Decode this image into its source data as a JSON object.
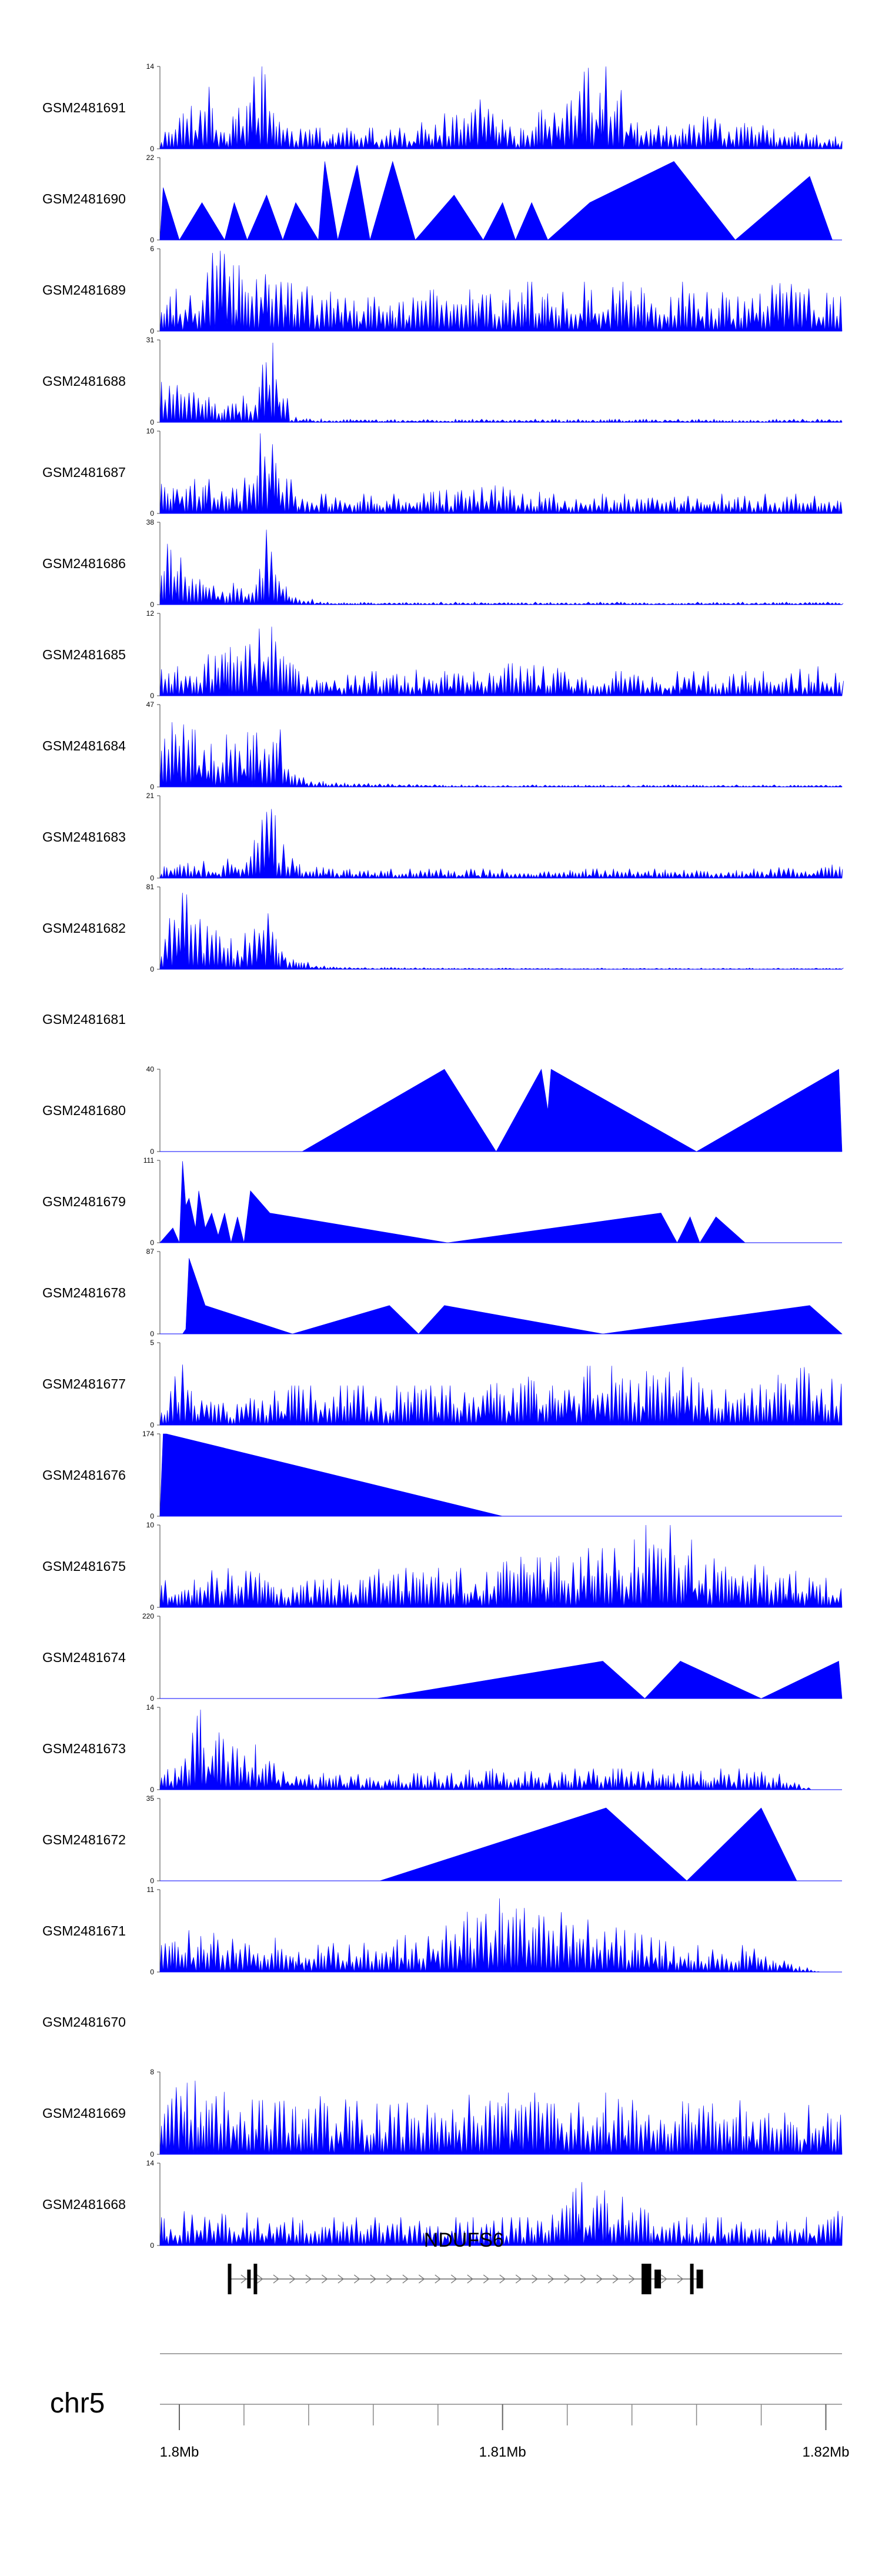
{
  "chart_data": {
    "type": "area",
    "title": "",
    "fill_color": "#0000FF",
    "genome": {
      "chromosome_label": "chr5",
      "gene_name": "NDUFS6",
      "tick_labels": [
        "1.8Mb",
        "1.81Mb",
        "1.82Mb"
      ],
      "tick_values": [
        1.8,
        1.81,
        1.82
      ],
      "minor_tick_step": 0.002,
      "xlim": [
        1.7994,
        1.8205
      ],
      "gene": {
        "start": 1.8015,
        "end": 1.8161,
        "strand": "+",
        "exons": [
          {
            "start": 1.8015,
            "end": 1.8016,
            "height": "full"
          },
          {
            "start": 1.8021,
            "end": 1.8022,
            "height": "half"
          },
          {
            "start": 1.8023,
            "end": 1.8024,
            "height": "full"
          },
          {
            "start": 1.8143,
            "end": 1.8146,
            "height": "full"
          },
          {
            "start": 1.8147,
            "end": 1.8149,
            "height": "half"
          },
          {
            "start": 1.8158,
            "end": 1.8159,
            "height": "full"
          },
          {
            "start": 1.816,
            "end": 1.8162,
            "height": "half"
          }
        ]
      }
    },
    "tracks": [
      {
        "name": "GSM2481691",
        "ymax": 14,
        "style": "dense",
        "seed": 11,
        "x": [
          1.7994,
          1.8003,
          1.8009,
          1.8014,
          1.8018,
          1.802,
          1.8022,
          1.8024,
          1.8025,
          1.8028,
          1.8032,
          1.8038,
          1.8048,
          1.807,
          1.8098,
          1.8103,
          1.8132,
          1.8142,
          1.8158,
          1.8168,
          1.8205
        ],
        "y": [
          2,
          6,
          9,
          3,
          7,
          8,
          10,
          11,
          14,
          8,
          4,
          3,
          3,
          3,
          8,
          2,
          14,
          3,
          5,
          4,
          2
        ]
      },
      {
        "name": "GSM2481690",
        "ymax": 22,
        "style": "sparse",
        "seed": 12,
        "x": [
          1.7994,
          1.7995,
          1.8,
          1.8007,
          1.8014,
          1.8017,
          1.8021,
          1.8027,
          1.8032,
          1.8036,
          1.8043,
          1.8045,
          1.8049,
          1.8055,
          1.8059,
          1.8066,
          1.8073,
          1.8085,
          1.8094,
          1.81,
          1.8104,
          1.8109,
          1.8114,
          1.8127,
          1.8153,
          1.8172,
          1.8195,
          1.8202
        ],
        "y": [
          0,
          14,
          0,
          10,
          0,
          10,
          0,
          12,
          0,
          10,
          0,
          21,
          0,
          20,
          0,
          21,
          0,
          12,
          0,
          10,
          0,
          10,
          0,
          10,
          21,
          0,
          17,
          0
        ]
      },
      {
        "name": "GSM2481689",
        "ymax": 6,
        "style": "dense",
        "seed": 13,
        "x": [
          1.7994,
          1.8002,
          1.8008,
          1.8012,
          1.8016,
          1.8022,
          1.8027,
          1.8032,
          1.8056,
          1.8098,
          1.8114,
          1.8136,
          1.8156,
          1.8174,
          1.8188,
          1.8205
        ],
        "y": [
          2,
          3,
          4,
          6,
          4,
          4,
          5,
          3,
          2,
          3,
          3,
          3,
          3,
          2,
          4,
          2
        ]
      },
      {
        "name": "GSM2481688",
        "ymax": 31,
        "style": "dense",
        "seed": 14,
        "x": [
          1.7994,
          1.7997,
          1.8002,
          1.8007,
          1.8015,
          1.8022,
          1.8025,
          1.8028,
          1.803,
          1.8034,
          1.8045,
          1.808,
          1.8105,
          1.8135,
          1.8165,
          1.8205
        ],
        "y": [
          20,
          22,
          12,
          10,
          9,
          12,
          28,
          30,
          20,
          2,
          1,
          1,
          1,
          1,
          1,
          1
        ]
      },
      {
        "name": "GSM2481687",
        "ymax": 10,
        "style": "dense",
        "seed": 15,
        "x": [
          1.7994,
          1.8001,
          1.8008,
          1.8015,
          1.8022,
          1.8025,
          1.8027,
          1.803,
          1.8036,
          1.8056,
          1.8074,
          1.8094,
          1.8115,
          1.8138,
          1.8168,
          1.8205
        ],
        "y": [
          3,
          5,
          4,
          3,
          4,
          9,
          10,
          6,
          2,
          2,
          2,
          3,
          2,
          2,
          2,
          2
        ]
      },
      {
        "name": "GSM2481686",
        "ymax": 38,
        "style": "dense",
        "seed": 16,
        "x": [
          1.7994,
          1.7997,
          1.8003,
          1.8008,
          1.8015,
          1.802,
          1.8024,
          1.8027,
          1.8029,
          1.8034,
          1.8045,
          1.8085,
          1.8125,
          1.8165,
          1.8205
        ],
        "y": [
          15,
          30,
          12,
          8,
          10,
          10,
          15,
          34,
          25,
          5,
          1,
          1,
          1,
          1,
          1
        ]
      },
      {
        "name": "GSM2481685",
        "ymax": 12,
        "style": "dense",
        "seed": 17,
        "x": [
          1.7994,
          1.8003,
          1.8008,
          1.8016,
          1.802,
          1.8024,
          1.8026,
          1.803,
          1.8036,
          1.8066,
          1.8104,
          1.8124,
          1.8156,
          1.8186,
          1.8205
        ],
        "y": [
          4,
          5,
          5,
          6,
          7,
          8,
          10,
          7,
          3,
          3,
          4,
          3,
          3,
          3,
          4
        ]
      },
      {
        "name": "GSM2481684",
        "ymax": 47,
        "style": "dense",
        "seed": 18,
        "x": [
          1.7994,
          1.7998,
          1.8002,
          1.8008,
          1.8014,
          1.802,
          1.8025,
          1.8028,
          1.8031,
          1.8035,
          1.8048,
          1.8088,
          1.8128,
          1.8168,
          1.8205
        ],
        "y": [
          20,
          33,
          28,
          26,
          25,
          24,
          38,
          42,
          28,
          6,
          2,
          1,
          1,
          1,
          1
        ]
      },
      {
        "name": "GSM2481683",
        "ymax": 21,
        "style": "dense",
        "seed": 19,
        "x": [
          1.7994,
          1.8004,
          1.8012,
          1.802,
          1.8025,
          1.8027,
          1.803,
          1.8036,
          1.8056,
          1.8104,
          1.8136,
          1.8176,
          1.8205
        ],
        "y": [
          3,
          4,
          3,
          7,
          18,
          20,
          11,
          3,
          2,
          2,
          2,
          2,
          3
        ]
      },
      {
        "name": "GSM2481682",
        "ymax": 81,
        "style": "dense",
        "seed": 20,
        "x": [
          1.7994,
          1.7998,
          1.8003,
          1.8009,
          1.8015,
          1.802,
          1.8025,
          1.8027,
          1.803,
          1.8034,
          1.8046,
          1.8086,
          1.8126,
          1.8166,
          1.8205
        ],
        "y": [
          30,
          65,
          60,
          35,
          25,
          30,
          55,
          72,
          40,
          10,
          2,
          1,
          1,
          1,
          1
        ]
      },
      {
        "name": "GSM2481681",
        "ymax": null,
        "style": "empty",
        "seed": 21,
        "x": [],
        "y": []
      },
      {
        "name": "GSM2481680",
        "ymax": 40,
        "style": "sparse",
        "seed": 22,
        "x": [
          1.7994,
          1.8038,
          1.8082,
          1.8098,
          1.8112,
          1.8114,
          1.8115,
          1.816,
          1.8204,
          1.8205
        ],
        "y": [
          0,
          0,
          40,
          0,
          40,
          20,
          40,
          0,
          40,
          0
        ]
      },
      {
        "name": "GSM2481679",
        "ymax": 111,
        "style": "sparse",
        "seed": 23,
        "x": [
          1.7994,
          1.7998,
          1.8,
          1.8001,
          1.8002,
          1.8003,
          1.8005,
          1.8006,
          1.8008,
          1.801,
          1.8012,
          1.8014,
          1.8016,
          1.8018,
          1.802,
          1.8022,
          1.8028,
          1.8083,
          1.8149,
          1.8154,
          1.8158,
          1.8161,
          1.8166,
          1.8175,
          1.819
        ],
        "y": [
          0,
          20,
          0,
          110,
          50,
          60,
          20,
          70,
          20,
          40,
          10,
          40,
          0,
          35,
          0,
          70,
          40,
          0,
          40,
          0,
          35,
          0,
          35,
          0,
          0
        ]
      },
      {
        "name": "GSM2481678",
        "ymax": 87,
        "style": "sparse",
        "seed": 24,
        "x": [
          1.7994,
          1.8,
          1.8001,
          1.8001,
          1.8002,
          1.8003,
          1.8008,
          1.8035,
          1.8065,
          1.8074,
          1.8082,
          1.8131,
          1.8195,
          1.8205
        ],
        "y": [
          0,
          0,
          0,
          0,
          5,
          80,
          30,
          0,
          30,
          0,
          30,
          0,
          30,
          0
        ]
      },
      {
        "name": "GSM2481677",
        "ymax": 5,
        "style": "dense",
        "seed": 25,
        "x": [
          1.7994,
          1.8,
          1.8004,
          1.8014,
          1.8034,
          1.8064,
          1.8094,
          1.8124,
          1.8154,
          1.8174,
          1.8194,
          1.8205
        ],
        "y": [
          1,
          4,
          2,
          1,
          2,
          2,
          2,
          3,
          3,
          2,
          3,
          2
        ]
      },
      {
        "name": "GSM2481676",
        "ymax": 174,
        "style": "sparse",
        "seed": 26,
        "x": [
          1.7994,
          1.7995,
          1.7996,
          1.81,
          1.8205
        ],
        "y": [
          0,
          174,
          174,
          0,
          0
        ]
      },
      {
        "name": "GSM2481675",
        "ymax": 10,
        "style": "dense",
        "seed": 27,
        "x": [
          1.7994,
          1.8014,
          1.8034,
          1.8064,
          1.8094,
          1.8114,
          1.8134,
          1.8148,
          1.8164,
          1.8184,
          1.8205
        ],
        "y": [
          3,
          4,
          3,
          4,
          4,
          6,
          6,
          10,
          5,
          4,
          3
        ]
      },
      {
        "name": "GSM2481674",
        "ymax": 220,
        "style": "sparse",
        "seed": 28,
        "x": [
          1.7994,
          1.8061,
          1.8131,
          1.8144,
          1.8155,
          1.818,
          1.8204,
          1.8205
        ],
        "y": [
          0,
          0,
          100,
          0,
          100,
          0,
          100,
          0
        ]
      },
      {
        "name": "GSM2481673",
        "ymax": 14,
        "style": "dense",
        "seed": 29,
        "x": [
          1.7994,
          1.8,
          1.8005,
          1.8012,
          1.802,
          1.8026,
          1.8035,
          1.806,
          1.8095,
          1.8125,
          1.8155,
          1.8185,
          1.8195
        ],
        "y": [
          2,
          6,
          12,
          8,
          8,
          5,
          3,
          2,
          3,
          3,
          3,
          3,
          0
        ]
      },
      {
        "name": "GSM2481672",
        "ymax": 35,
        "style": "sparse",
        "seed": 30,
        "x": [
          1.7994,
          1.8062,
          1.8132,
          1.8157,
          1.818,
          1.8191,
          1.8205
        ],
        "y": [
          0,
          0,
          31,
          0,
          31,
          0,
          0
        ]
      },
      {
        "name": "GSM2481671",
        "ymax": 11,
        "style": "dense",
        "seed": 31,
        "x": [
          1.7994,
          1.8004,
          1.8014,
          1.8024,
          1.8054,
          1.8084,
          1.8104,
          1.8114,
          1.8134,
          1.8154,
          1.8174,
          1.8198
        ],
        "y": [
          3,
          5,
          5,
          4,
          3,
          6,
          9,
          7,
          5,
          3,
          3,
          0
        ]
      },
      {
        "name": "GSM2481670",
        "ymax": null,
        "style": "empty",
        "seed": 32,
        "x": [],
        "y": []
      },
      {
        "name": "GSM2481669",
        "ymax": 8,
        "style": "dense",
        "seed": 33,
        "x": [
          1.7994,
          1.8004,
          1.8014,
          1.8034,
          1.8064,
          1.8094,
          1.8124,
          1.8154,
          1.8184,
          1.8205
        ],
        "y": [
          5,
          6,
          5,
          5,
          4,
          5,
          5,
          5,
          4,
          4
        ]
      },
      {
        "name": "GSM2481668",
        "ymax": 14,
        "style": "dense",
        "seed": 34,
        "x": [
          1.7994,
          1.8004,
          1.8014,
          1.8034,
          1.8064,
          1.8094,
          1.8114,
          1.8124,
          1.8154,
          1.8184,
          1.8205
        ],
        "y": [
          4,
          6,
          5,
          4,
          4,
          4,
          4,
          9,
          4,
          4,
          5
        ]
      }
    ]
  }
}
